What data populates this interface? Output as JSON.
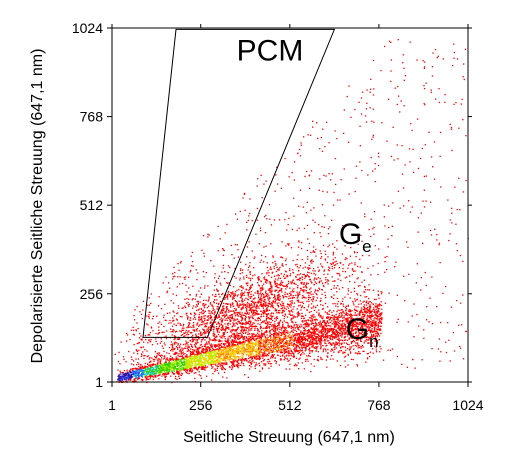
{
  "chart_data": {
    "type": "scatter",
    "title": "",
    "xlabel": "Seitliche Streuung (647,1 nm)",
    "ylabel": "Depolarisierte Seitliche Streuung (647,1 nm)",
    "xlim": [
      1,
      1024
    ],
    "ylim": [
      1,
      1024
    ],
    "x_ticks": [
      {
        "value": 1,
        "label": "1"
      },
      {
        "value": 256,
        "label": "256"
      },
      {
        "value": 512,
        "label": "512"
      },
      {
        "value": 768,
        "label": "768"
      },
      {
        "value": 1024,
        "label": "1024"
      }
    ],
    "y_ticks": [
      {
        "value": 1,
        "label": "1"
      },
      {
        "value": 256,
        "label": "256"
      },
      {
        "value": 512,
        "label": "512"
      },
      {
        "value": 768,
        "label": "768"
      },
      {
        "value": 1024,
        "label": "1024"
      }
    ],
    "grid": false,
    "gate": {
      "name": "PCM",
      "polygon": [
        [
          90,
          130
        ],
        [
          275,
          130
        ],
        [
          640,
          1020
        ],
        [
          185,
          1020
        ]
      ]
    },
    "annotations": [
      {
        "main": "PCM",
        "sub": "",
        "x": 455,
        "y": 930
      },
      {
        "main": "G",
        "sub": "e",
        "x": 700,
        "y": 400
      },
      {
        "main": "G",
        "sub": "n",
        "x": 720,
        "y": 125
      }
    ],
    "density_colors": [
      "#ff0000",
      "#ff7a00",
      "#ffd000",
      "#b4f000",
      "#30d000",
      "#10c8c8",
      "#2050ff",
      "#3010a0"
    ]
  }
}
